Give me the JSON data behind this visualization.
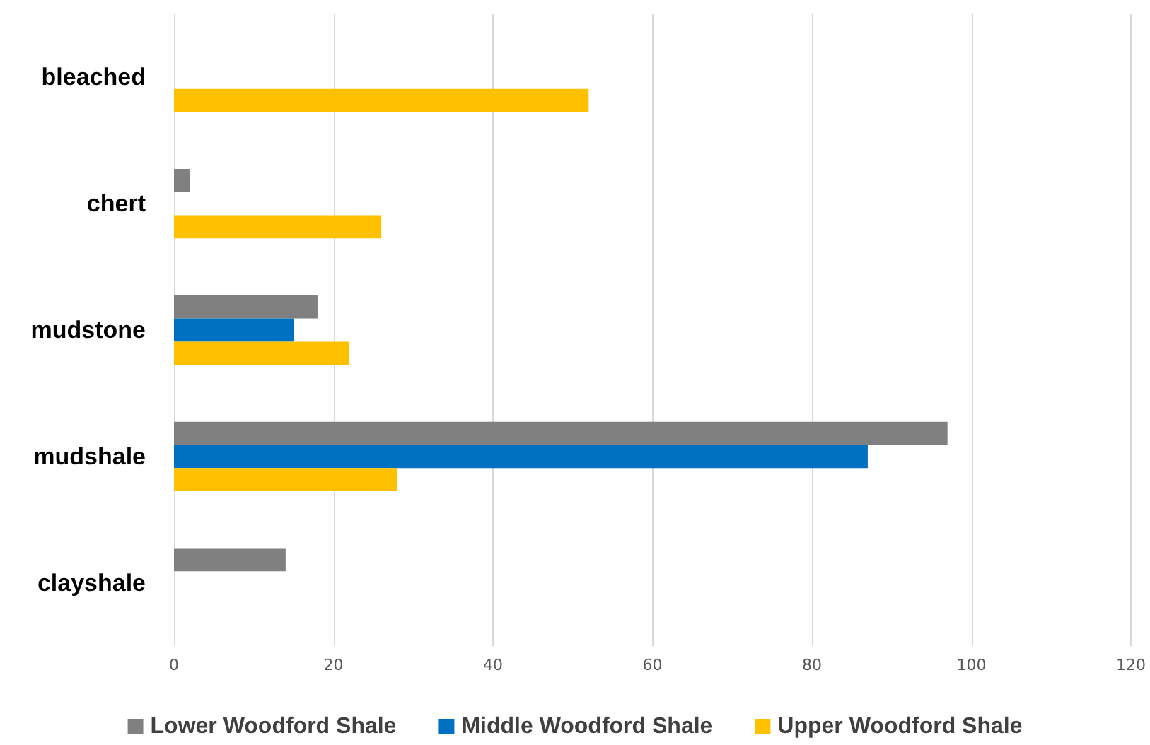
{
  "chart_data": {
    "type": "bar",
    "orientation": "horizontal",
    "categories": [
      "bleached",
      "chert",
      "mudstone",
      "mudshale",
      "clayshale"
    ],
    "series": [
      {
        "name": "Lower Woodford Shale",
        "color": "#808080",
        "values": [
          null,
          2,
          18,
          97,
          14
        ]
      },
      {
        "name": "Middle Woodford Shale",
        "color": "#0070c0",
        "values": [
          null,
          null,
          15,
          87,
          null
        ]
      },
      {
        "name": "Upper Woodford Shale",
        "color": "#ffc000",
        "values": [
          52,
          26,
          22,
          28,
          null
        ]
      }
    ],
    "xlim": [
      0,
      120
    ],
    "xticks": [
      0,
      20,
      40,
      60,
      80,
      100,
      120
    ],
    "grid": "x",
    "legend": "bottom"
  }
}
